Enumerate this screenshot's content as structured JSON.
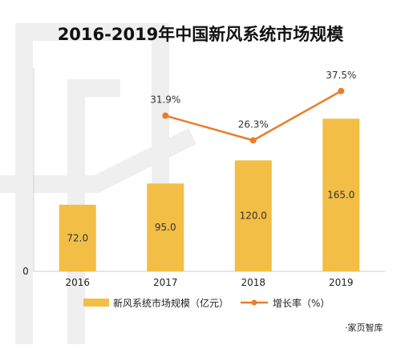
{
  "chart_data": {
    "type": "bar",
    "title": "2016-2019年中国新风系统市场规模",
    "categories": [
      "2016",
      "2017",
      "2018",
      "2019"
    ],
    "series": [
      {
        "name": "新风系统市场规模（亿元）",
        "type": "bar",
        "values": [
          72.0,
          95.0,
          120.0,
          165.0
        ],
        "labels": [
          "72.0",
          "95.0",
          "120.0",
          "165.0"
        ],
        "color": "#F2BE45"
      },
      {
        "name": "增长率（%）",
        "type": "line",
        "values": [
          null,
          31.9,
          26.3,
          37.5
        ],
        "labels": [
          "",
          "31.9%",
          "26.3%",
          "37.5%"
        ],
        "color": "#EA7D2B"
      }
    ],
    "ytick_label": "0",
    "ylim": [
      0,
      180
    ],
    "grid": false,
    "legend_position": "bottom"
  },
  "source": "·家页智库",
  "colors": {
    "bar": "#F2BE45",
    "line": "#EA7D2B",
    "axis": "#CCCCCC"
  }
}
